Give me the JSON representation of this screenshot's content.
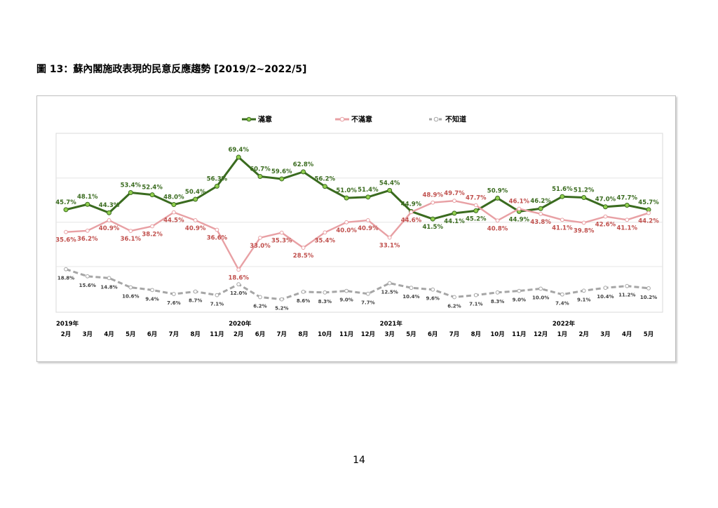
{
  "page": {
    "figure_title": "圖 13：蘇內閣施政表現的民意反應趨勢  [2019/2~2022/5]",
    "page_number": "14"
  },
  "chart_data": {
    "type": "line",
    "categories": [
      "2月",
      "3月",
      "4月",
      "5月",
      "6月",
      "7月",
      "8月",
      "11月",
      "2月",
      "6月",
      "7月",
      "8月",
      "10月",
      "11月",
      "12月",
      "3月",
      "5月",
      "6月",
      "7月",
      "8月",
      "10月",
      "11月",
      "12月",
      "1月",
      "2月",
      "3月",
      "4月",
      "5月"
    ],
    "year_labels": [
      {
        "index": 0,
        "label": "2019年"
      },
      {
        "index": 8,
        "label": "2020年"
      },
      {
        "index": 15,
        "label": "2021年"
      },
      {
        "index": 23,
        "label": "2022年"
      }
    ],
    "ylim": [
      0,
      80
    ],
    "grid": true,
    "legend_position": "top",
    "series": [
      {
        "name": "滿意",
        "color": "#3a6b1f",
        "marker": "#92d050",
        "dashed": false,
        "values": [
          45.7,
          48.1,
          44.3,
          53.4,
          52.4,
          48.0,
          50.4,
          56.3,
          69.4,
          60.7,
          59.6,
          62.8,
          56.2,
          51.0,
          51.4,
          54.4,
          44.9,
          41.5,
          44.1,
          45.2,
          50.9,
          44.9,
          46.2,
          51.6,
          51.2,
          47.0,
          47.7,
          45.7
        ],
        "labels": [
          "45.7%",
          "48.1%",
          "44.3%",
          "53.4%",
          "52.4%",
          "48.0%",
          "50.4%",
          "56.3%",
          "69.4%",
          "60.7%",
          "59.6%",
          "62.8%",
          "56.2%",
          "51.0%",
          "51.4%",
          "54.4%",
          "44.9%",
          "41.5%",
          "44.1%",
          "45.2%",
          "50.9%",
          "44.9%",
          "46.2%",
          "51.6%",
          "51.2%",
          "47.0%",
          "47.7%",
          "45.7%"
        ]
      },
      {
        "name": "不滿意",
        "color": "#e8a0a4",
        "marker": "#ffffff",
        "dashed": false,
        "values": [
          35.6,
          36.2,
          40.9,
          36.1,
          38.2,
          44.5,
          40.9,
          36.6,
          18.6,
          33.0,
          35.3,
          28.5,
          35.4,
          40.0,
          40.9,
          33.1,
          44.6,
          48.9,
          49.7,
          47.7,
          40.8,
          46.1,
          43.8,
          41.1,
          39.8,
          42.6,
          41.1,
          44.2
        ],
        "labels": [
          "35.6%",
          "36.2%",
          "40.9%",
          "36.1%",
          "38.2%",
          "44.5%",
          "40.9%",
          "36.6%",
          "18.6%",
          "33.0%",
          "35.3%",
          "28.5%",
          "35.4%",
          "40.0%",
          "40.9%",
          "33.1%",
          "44.6%",
          "48.9%",
          "49.7%",
          "47.7%",
          "40.8%",
          "46.1%",
          "43.8%",
          "41.1%",
          "39.8%",
          "42.6%",
          "41.1%",
          "44.2%"
        ]
      },
      {
        "name": "不知道",
        "color": "#a6a6a6",
        "marker": "#ffffff",
        "dashed": true,
        "values": [
          18.8,
          15.6,
          14.8,
          10.6,
          9.4,
          7.6,
          8.7,
          7.1,
          12.0,
          6.2,
          5.2,
          8.6,
          8.3,
          9.0,
          7.7,
          12.5,
          10.4,
          9.6,
          6.2,
          7.1,
          8.3,
          9.0,
          10.0,
          7.4,
          9.1,
          10.4,
          11.2,
          10.2
        ],
        "labels": [
          "18.8%",
          "15.6%",
          "14.8%",
          "10.6%",
          "9.4%",
          "7.6%",
          "8.7%",
          "7.1%",
          "12.0%",
          "6.2%",
          "5.2%",
          "8.6%",
          "8.3%",
          "9.0%",
          "7.7%",
          "12.5%",
          "10.4%",
          "9.6%",
          "6.2%",
          "7.1%",
          "8.3%",
          "9.0%",
          "10.0%",
          "7.4%",
          "9.1%",
          "10.4%",
          "11.2%",
          "10.2%"
        ]
      }
    ]
  }
}
